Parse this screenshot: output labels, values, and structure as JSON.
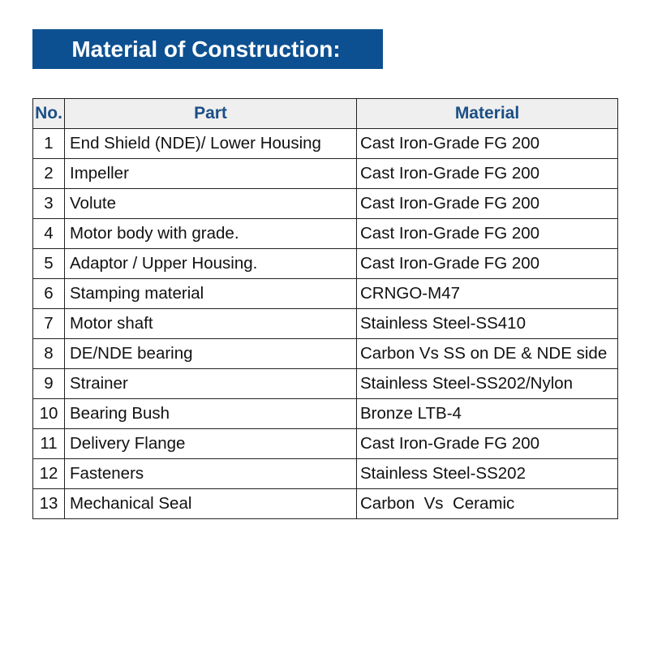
{
  "title": "Material of Construction:",
  "colors": {
    "banner": "#0d5091",
    "header_text": "#1b4f86",
    "header_bg": "#efefef"
  },
  "table": {
    "headers": [
      "No.",
      "Part",
      "Material"
    ],
    "rows": [
      {
        "no": "1",
        "part": "End Shield (NDE)/ Lower Housing",
        "material": "Cast Iron-Grade FG 200"
      },
      {
        "no": "2",
        "part": "Impeller",
        "material": "Cast Iron-Grade FG 200"
      },
      {
        "no": "3",
        "part": "Volute",
        "material": "Cast Iron-Grade FG 200"
      },
      {
        "no": "4",
        "part": "Motor body with grade.",
        "material": "Cast Iron-Grade FG 200"
      },
      {
        "no": "5",
        "part": "Adaptor / Upper Housing.",
        "material": "Cast Iron-Grade FG 200"
      },
      {
        "no": "6",
        "part": "Stamping material",
        "material": "CRNGO-M47"
      },
      {
        "no": "7",
        "part": "Motor shaft",
        "material": "Stainless Steel-SS410"
      },
      {
        "no": "8",
        "part": "DE/NDE bearing",
        "material": "Carbon Vs SS on DE & NDE side"
      },
      {
        "no": "9",
        "part": "Strainer",
        "material": "Stainless Steel-SS202/Nylon"
      },
      {
        "no": "10",
        "part": "Bearing Bush",
        "material": "Bronze LTB-4"
      },
      {
        "no": "11",
        "part": "Delivery Flange",
        "material": "Cast Iron-Grade FG 200"
      },
      {
        "no": "12",
        "part": "Fasteners",
        "material": "Stainless Steel-SS202"
      },
      {
        "no": "13",
        "part": "Mechanical Seal",
        "material": "Carbon  Vs  Ceramic"
      }
    ]
  }
}
